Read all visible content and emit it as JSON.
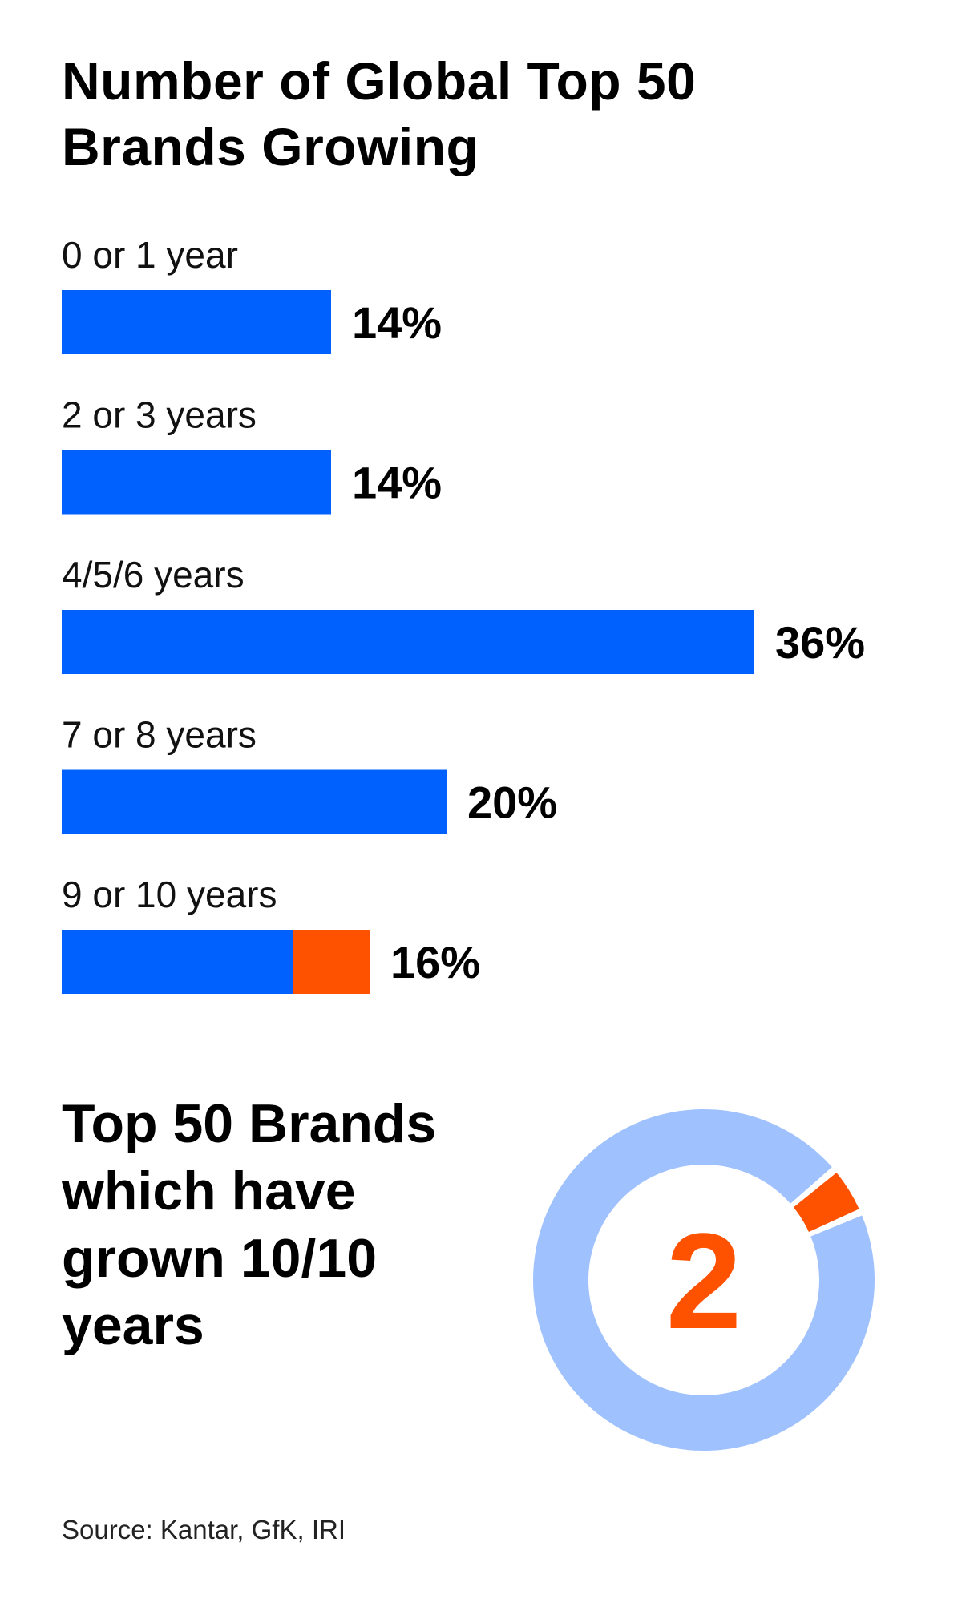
{
  "colors": {
    "bar": "#0061fe",
    "highlight": "#ff5200",
    "donut_ring": "#9fc1fd",
    "text": "#000000"
  },
  "chart_data": [
    {
      "type": "bar",
      "orientation": "horizontal",
      "title": "Number of Global Top 50 Brands Growing",
      "categories": [
        "0 or 1 year",
        "2 or 3 years",
        "4/5/6 years",
        "7 or 8 years",
        "9 or 10 years"
      ],
      "values": [
        14,
        14,
        36,
        20,
        16
      ],
      "value_labels": [
        "14%",
        "14%",
        "36%",
        "20%",
        "16%"
      ],
      "highlight_segment": {
        "category": "9 or 10 years",
        "value": 4
      },
      "unit": "%",
      "grid": false,
      "axes_visible": false
    },
    {
      "type": "pie",
      "style": "donut",
      "title": "Top 50 Brands which have grown 10/10 years",
      "center_label": "2",
      "total": 50,
      "highlight_value": 2
    }
  ],
  "source": "Source: Kantar, GfK, IRI"
}
